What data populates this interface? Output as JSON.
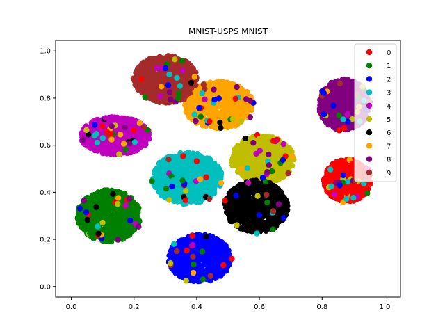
{
  "chart_data": {
    "type": "scatter",
    "title": "MNIST-USPS MNIST",
    "xlabel": "",
    "ylabel": "",
    "xlim": [
      -0.05,
      1.05
    ],
    "ylim": [
      -0.045,
      1.045
    ],
    "xticks": [
      "0.0",
      "0.2",
      "0.4",
      "0.6",
      "0.8",
      "1.0"
    ],
    "yticks": [
      "0.0",
      "0.2",
      "0.4",
      "0.6",
      "0.8",
      "1.0"
    ],
    "xtick_values": [
      0.0,
      0.2,
      0.4,
      0.6,
      0.8,
      1.0
    ],
    "ytick_values": [
      0.0,
      0.2,
      0.4,
      0.6,
      0.8,
      1.0
    ],
    "grid": false,
    "legend_position": "top-right",
    "series": [
      {
        "name": "0",
        "color": "#ff0000",
        "cluster": {
          "cx": 0.88,
          "cy": 0.45,
          "rx": 0.075,
          "ry": 0.09
        }
      },
      {
        "name": "1",
        "color": "#008000",
        "cluster": {
          "cx": 0.12,
          "cy": 0.3,
          "rx": 0.1,
          "ry": 0.11
        }
      },
      {
        "name": "2",
        "color": "#0000ff",
        "cluster": {
          "cx": 0.41,
          "cy": 0.12,
          "rx": 0.1,
          "ry": 0.1
        }
      },
      {
        "name": "3",
        "color": "#00bfbf",
        "cluster": {
          "cx": 0.37,
          "cy": 0.46,
          "rx": 0.11,
          "ry": 0.11
        }
      },
      {
        "name": "4",
        "color": "#bf00bf",
        "cluster": {
          "cx": 0.14,
          "cy": 0.64,
          "rx": 0.11,
          "ry": 0.08
        }
      },
      {
        "name": "5",
        "color": "#bfbf00",
        "cluster": {
          "cx": 0.61,
          "cy": 0.54,
          "rx": 0.1,
          "ry": 0.1
        }
      },
      {
        "name": "6",
        "color": "#000000",
        "cluster": {
          "cx": 0.59,
          "cy": 0.34,
          "rx": 0.1,
          "ry": 0.11
        }
      },
      {
        "name": "7",
        "color": "#ffa500",
        "cluster": {
          "cx": 0.47,
          "cy": 0.77,
          "rx": 0.11,
          "ry": 0.1
        }
      },
      {
        "name": "8",
        "color": "#800080",
        "cluster": {
          "cx": 0.87,
          "cy": 0.77,
          "rx": 0.08,
          "ry": 0.11
        }
      },
      {
        "name": "9",
        "color": "#a52a2a",
        "cluster": {
          "cx": 0.3,
          "cy": 0.88,
          "rx": 0.1,
          "ry": 0.1
        }
      }
    ]
  }
}
